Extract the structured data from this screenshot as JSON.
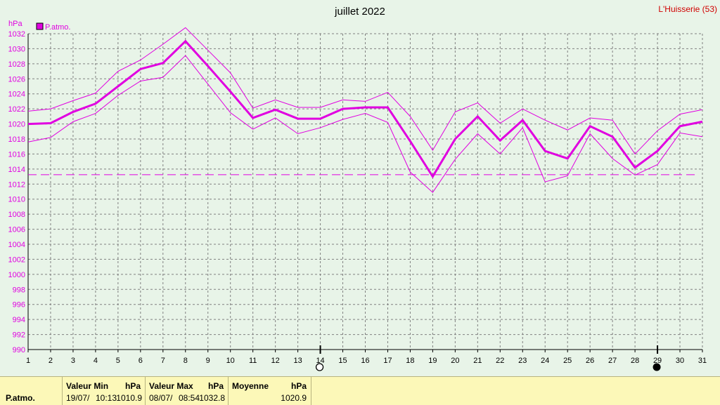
{
  "chart_data": {
    "type": "line",
    "title": "juillet 2022",
    "location": "L'Huisserie (53)",
    "ylabel": "hPa",
    "legend": "P.atmo.",
    "legend_position": "top-left",
    "grid": true,
    "ylim": [
      990,
      1032
    ],
    "yticks": [
      990,
      992,
      994,
      996,
      998,
      1000,
      1002,
      1004,
      1006,
      1008,
      1010,
      1012,
      1014,
      1016,
      1018,
      1020,
      1022,
      1024,
      1026,
      1028,
      1030,
      1032
    ],
    "x": [
      1,
      2,
      3,
      4,
      5,
      6,
      7,
      8,
      9,
      10,
      11,
      12,
      13,
      14,
      15,
      16,
      17,
      18,
      19,
      20,
      21,
      22,
      23,
      24,
      25,
      26,
      27,
      28,
      29,
      30,
      31
    ],
    "series": [
      {
        "role": "mean",
        "values": [
          1020.0,
          1020.1,
          1021.6,
          1022.7,
          1025.0,
          1027.3,
          1028.1,
          1031.0,
          1027.7,
          1024.3,
          1020.8,
          1021.9,
          1020.7,
          1020.7,
          1022.0,
          1022.2,
          1022.2,
          1017.7,
          1013.0,
          1018.0,
          1021.0,
          1017.8,
          1020.5,
          1016.4,
          1015.4,
          1019.7,
          1018.3,
          1014.2,
          1016.4,
          1019.7,
          1020.3
        ]
      },
      {
        "role": "max",
        "values": [
          1021.7,
          1022.0,
          1023.1,
          1024.1,
          1027.0,
          1028.5,
          1030.6,
          1032.8,
          1029.8,
          1026.8,
          1022.1,
          1023.2,
          1022.2,
          1022.2,
          1023.2,
          1023.0,
          1024.2,
          1021.0,
          1016.5,
          1021.6,
          1022.8,
          1020.1,
          1022.0,
          1020.5,
          1019.2,
          1020.8,
          1020.5,
          1016.0,
          1019.1,
          1021.3,
          1021.9
        ]
      },
      {
        "role": "min",
        "values": [
          1017.6,
          1018.2,
          1020.3,
          1021.4,
          1023.8,
          1025.7,
          1026.2,
          1029.1,
          1025.3,
          1021.5,
          1019.3,
          1020.8,
          1018.7,
          1019.5,
          1020.6,
          1021.4,
          1020.2,
          1013.6,
          1010.9,
          1015.3,
          1018.7,
          1016.0,
          1019.5,
          1012.3,
          1013.1,
          1018.7,
          1015.4,
          1013.2,
          1014.6,
          1018.8,
          1018.3
        ]
      }
    ],
    "reference_line": 1013.25,
    "moon_phases": [
      {
        "day": 14,
        "phase": "full-moon"
      },
      {
        "day": 29,
        "phase": "new-moon"
      }
    ],
    "colors": {
      "series": "#e000e0",
      "grid": "#808080",
      "background": "#e8f4e8"
    }
  },
  "footer": {
    "row_label": "P.atmo.",
    "min": {
      "label": "Valeur Min",
      "unit": "hPa",
      "date": "19/07/",
      "time": "10:13",
      "value": "1010.9"
    },
    "max": {
      "label": "Valeur Max",
      "unit": "hPa",
      "date": "08/07/",
      "time": "08:54",
      "value": "1032.8"
    },
    "avg": {
      "label": "Moyenne",
      "unit": "hPa",
      "value": "1020.9"
    }
  }
}
